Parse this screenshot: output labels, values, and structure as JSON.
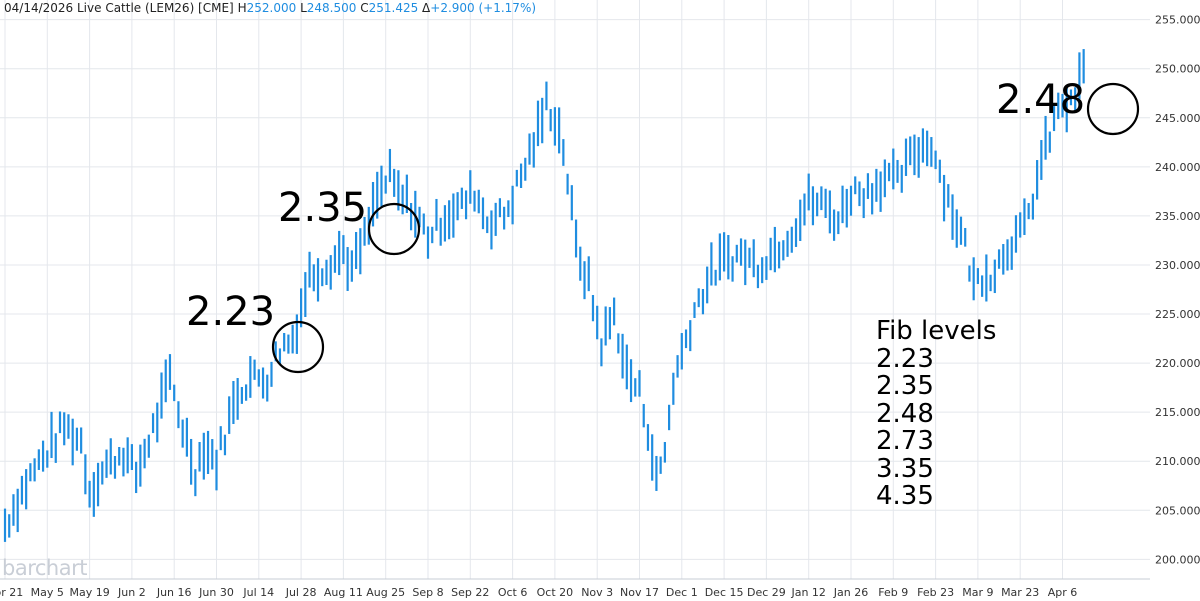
{
  "header": {
    "date": "04/14/2026",
    "instrument": "Live Cattle (LEM26) [CME]",
    "h_label": "H",
    "h_value": "252.000",
    "l_label": "L",
    "l_value": "248.500",
    "c_label": "C",
    "c_value": "251.425",
    "delta_label": "Δ",
    "delta_value": "+2.900 (+1.17%)"
  },
  "watermark": "barchart",
  "annotations": {
    "circle_labels": [
      "2.23",
      "2.35",
      "2.48"
    ],
    "fib_title": "Fib levels",
    "fib_levels": [
      "2.23",
      "2.35",
      "2.48",
      "2.73",
      "3.35",
      "4.35"
    ]
  },
  "colors": {
    "bar": "#1f8de0",
    "grid": "#e4e7ec",
    "axis_text": "#333333",
    "value_text": "#1f8de0"
  },
  "chart_data": {
    "type": "bar",
    "subtype": "high-low range bars",
    "ylim": [
      198,
      257
    ],
    "y_ticks": [
      "200.000",
      "205.000",
      "210.000",
      "215.000",
      "220.000",
      "225.000",
      "230.000",
      "235.000",
      "240.000",
      "245.000",
      "250.000",
      "255.000"
    ],
    "x_ticks": [
      "Apr 21",
      "May 5",
      "May 19",
      "Jun 2",
      "Jun 16",
      "Jun 30",
      "Jul 14",
      "Jul 28",
      "Aug 11",
      "Aug 25",
      "Sep 8",
      "Sep 22",
      "Oct 6",
      "Oct 20",
      "Nov 3",
      "Nov 17",
      "Dec 1",
      "Dec 15",
      "Dec 29",
      "Jan 12",
      "Jan 26",
      "Feb 9",
      "Feb 23",
      "Mar 9",
      "Mar 23",
      "Apr 6"
    ],
    "x_tick_sessions": [
      0,
      10,
      20,
      30,
      40,
      50,
      60,
      70,
      80,
      90,
      100,
      110,
      120,
      130,
      140,
      150,
      160,
      170,
      180,
      190,
      200,
      210,
      220,
      230,
      240,
      250
    ],
    "anchors": [
      [
        0,
        203.5
      ],
      [
        6,
        208.5
      ],
      [
        10,
        211
      ],
      [
        14,
        213.5
      ],
      [
        18,
        212
      ],
      [
        20,
        207
      ],
      [
        24,
        209.5
      ],
      [
        28,
        211
      ],
      [
        31,
        208.5
      ],
      [
        36,
        214.5
      ],
      [
        39,
        218.5
      ],
      [
        42,
        213.5
      ],
      [
        45,
        209
      ],
      [
        47,
        211.5
      ],
      [
        50,
        210
      ],
      [
        55,
        217
      ],
      [
        58,
        218.5
      ],
      [
        62,
        218.5
      ],
      [
        65,
        221.5
      ],
      [
        68,
        222.5
      ],
      [
        72,
        229
      ],
      [
        76,
        230
      ],
      [
        80,
        231.5
      ],
      [
        82,
        229.5
      ],
      [
        85,
        232.5
      ],
      [
        88,
        237
      ],
      [
        91,
        239
      ],
      [
        93,
        237
      ],
      [
        96,
        236
      ],
      [
        100,
        233
      ],
      [
        104,
        235
      ],
      [
        108,
        236
      ],
      [
        111,
        237.5
      ],
      [
        114,
        234.5
      ],
      [
        118,
        235
      ],
      [
        122,
        239
      ],
      [
        126,
        243.5
      ],
      [
        128,
        246.5
      ],
      [
        130,
        245
      ],
      [
        132,
        242
      ],
      [
        135,
        232
      ],
      [
        138,
        228
      ],
      [
        141,
        222
      ],
      [
        144,
        225
      ],
      [
        147,
        219
      ],
      [
        150,
        217
      ],
      [
        152,
        213.5
      ],
      [
        154,
        208
      ],
      [
        156,
        211
      ],
      [
        158,
        218
      ],
      [
        160,
        221
      ],
      [
        163,
        225.5
      ],
      [
        167,
        229
      ],
      [
        170,
        230.5
      ],
      [
        174,
        231
      ],
      [
        178,
        230
      ],
      [
        182,
        231.5
      ],
      [
        186,
        233.5
      ],
      [
        190,
        236.5
      ],
      [
        194,
        236
      ],
      [
        197,
        234.5
      ],
      [
        200,
        237.5
      ],
      [
        204,
        237.5
      ],
      [
        208,
        239
      ],
      [
        211,
        238.5
      ],
      [
        215,
        241.5
      ],
      [
        219,
        242.5
      ],
      [
        222,
        238
      ],
      [
        224,
        235.5
      ],
      [
        227,
        232
      ],
      [
        229,
        228
      ],
      [
        231,
        229
      ],
      [
        234,
        229.5
      ],
      [
        237,
        232
      ],
      [
        240,
        233
      ],
      [
        242,
        235
      ],
      [
        245,
        240.5
      ],
      [
        248,
        244.5
      ],
      [
        250,
        246.5
      ],
      [
        252,
        246
      ],
      [
        254,
        248.5
      ],
      [
        255,
        251.5
      ]
    ],
    "session_count": 256,
    "last_bar": {
      "high": 252.0,
      "low": 248.5,
      "close": 251.425
    },
    "grid": true
  }
}
